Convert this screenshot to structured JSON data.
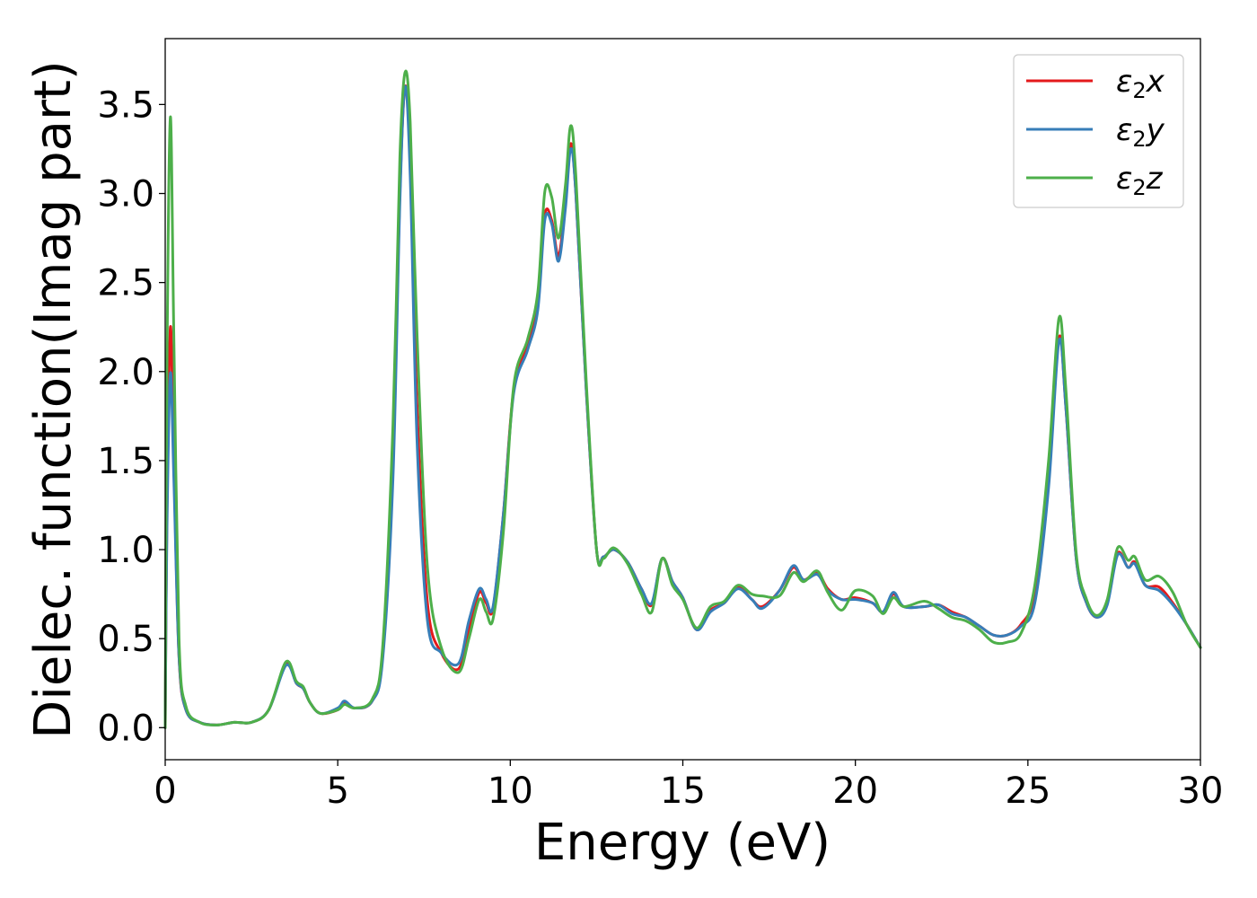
{
  "chart_data": {
    "type": "line",
    "title": "",
    "xlabel": "Energy (eV)",
    "ylabel": "Dielec. function(Imag part)",
    "xlim": [
      0,
      30
    ],
    "ylim": [
      -0.18,
      3.87
    ],
    "xticks": [
      0,
      5,
      10,
      15,
      20,
      25,
      30
    ],
    "yticks": [
      0.0,
      0.5,
      1.0,
      1.5,
      2.0,
      2.5,
      3.0,
      3.5
    ],
    "xtick_labels": [
      "0",
      "5",
      "10",
      "15",
      "20",
      "25",
      "30"
    ],
    "ytick_labels": [
      "0.0",
      "0.5",
      "1.0",
      "1.5",
      "2.0",
      "2.5",
      "3.0",
      "3.5"
    ],
    "grid": false,
    "legend_position": "top-right",
    "series": [
      {
        "name": "ε₂x",
        "legend_sym": "ε",
        "legend_sub": "2",
        "legend_var": "x",
        "color": "#e41a1c",
        "points": [
          [
            0,
            0.0
          ],
          [
            0.05,
            1.2
          ],
          [
            0.15,
            2.25
          ],
          [
            0.25,
            1.5
          ],
          [
            0.4,
            0.4
          ],
          [
            0.6,
            0.1
          ],
          [
            1,
            0.03
          ],
          [
            1.5,
            0.015
          ],
          [
            2,
            0.03
          ],
          [
            2.5,
            0.03
          ],
          [
            3,
            0.1
          ],
          [
            3.5,
            0.36
          ],
          [
            3.8,
            0.25
          ],
          [
            4.0,
            0.22
          ],
          [
            4.2,
            0.14
          ],
          [
            4.5,
            0.08
          ],
          [
            5,
            0.1
          ],
          [
            5.2,
            0.14
          ],
          [
            5.5,
            0.11
          ],
          [
            6,
            0.15
          ],
          [
            6.3,
            0.4
          ],
          [
            6.6,
            1.5
          ],
          [
            6.8,
            3.0
          ],
          [
            6.95,
            3.6
          ],
          [
            7.1,
            3.2
          ],
          [
            7.3,
            1.8
          ],
          [
            7.6,
            0.7
          ],
          [
            8,
            0.42
          ],
          [
            8.5,
            0.33
          ],
          [
            8.8,
            0.55
          ],
          [
            9.1,
            0.76
          ],
          [
            9.3,
            0.7
          ],
          [
            9.5,
            0.67
          ],
          [
            9.8,
            1.2
          ],
          [
            10.1,
            1.9
          ],
          [
            10.5,
            2.15
          ],
          [
            10.8,
            2.4
          ],
          [
            11.0,
            2.88
          ],
          [
            11.2,
            2.85
          ],
          [
            11.4,
            2.65
          ],
          [
            11.6,
            2.95
          ],
          [
            11.75,
            3.28
          ],
          [
            11.9,
            3.0
          ],
          [
            12.2,
            1.9
          ],
          [
            12.5,
            1.0
          ],
          [
            12.7,
            0.96
          ],
          [
            13,
            1.0
          ],
          [
            13.4,
            0.93
          ],
          [
            13.8,
            0.78
          ],
          [
            14.1,
            0.69
          ],
          [
            14.4,
            0.95
          ],
          [
            14.7,
            0.82
          ],
          [
            15,
            0.73
          ],
          [
            15.4,
            0.55
          ],
          [
            15.8,
            0.66
          ],
          [
            16.2,
            0.7
          ],
          [
            16.6,
            0.79
          ],
          [
            17,
            0.72
          ],
          [
            17.3,
            0.68
          ],
          [
            17.8,
            0.77
          ],
          [
            18.2,
            0.9
          ],
          [
            18.5,
            0.83
          ],
          [
            18.9,
            0.87
          ],
          [
            19.2,
            0.78
          ],
          [
            19.6,
            0.72
          ],
          [
            20,
            0.73
          ],
          [
            20.5,
            0.7
          ],
          [
            20.8,
            0.65
          ],
          [
            21.1,
            0.75
          ],
          [
            21.4,
            0.68
          ],
          [
            22,
            0.68
          ],
          [
            22.4,
            0.69
          ],
          [
            22.8,
            0.65
          ],
          [
            23.2,
            0.62
          ],
          [
            23.6,
            0.57
          ],
          [
            24,
            0.52
          ],
          [
            24.4,
            0.52
          ],
          [
            24.8,
            0.58
          ],
          [
            25.2,
            0.75
          ],
          [
            25.6,
            1.4
          ],
          [
            25.9,
            2.19
          ],
          [
            26.1,
            1.8
          ],
          [
            26.4,
            0.95
          ],
          [
            26.7,
            0.7
          ],
          [
            27.0,
            0.62
          ],
          [
            27.3,
            0.7
          ],
          [
            27.6,
            0.98
          ],
          [
            27.9,
            0.9
          ],
          [
            28.1,
            0.93
          ],
          [
            28.4,
            0.8
          ],
          [
            28.8,
            0.79
          ],
          [
            29.2,
            0.7
          ],
          [
            29.6,
            0.58
          ],
          [
            30,
            0.45
          ]
        ]
      },
      {
        "name": "ε₂y",
        "legend_sym": "ε",
        "legend_sub": "2",
        "legend_var": "y",
        "color": "#377eb8",
        "points": [
          [
            0,
            0.0
          ],
          [
            0.05,
            1.1
          ],
          [
            0.15,
            1.99
          ],
          [
            0.25,
            1.4
          ],
          [
            0.4,
            0.4
          ],
          [
            0.6,
            0.1
          ],
          [
            1,
            0.03
          ],
          [
            1.5,
            0.015
          ],
          [
            2,
            0.03
          ],
          [
            2.5,
            0.03
          ],
          [
            3,
            0.1
          ],
          [
            3.5,
            0.35
          ],
          [
            3.8,
            0.25
          ],
          [
            4.0,
            0.22
          ],
          [
            4.2,
            0.14
          ],
          [
            4.5,
            0.08
          ],
          [
            5,
            0.11
          ],
          [
            5.2,
            0.15
          ],
          [
            5.5,
            0.11
          ],
          [
            6,
            0.15
          ],
          [
            6.3,
            0.38
          ],
          [
            6.6,
            1.4
          ],
          [
            6.8,
            2.95
          ],
          [
            6.95,
            3.6
          ],
          [
            7.1,
            3.1
          ],
          [
            7.3,
            1.6
          ],
          [
            7.6,
            0.6
          ],
          [
            8,
            0.42
          ],
          [
            8.5,
            0.36
          ],
          [
            8.8,
            0.6
          ],
          [
            9.1,
            0.78
          ],
          [
            9.3,
            0.72
          ],
          [
            9.5,
            0.68
          ],
          [
            9.8,
            1.2
          ],
          [
            10.1,
            1.88
          ],
          [
            10.5,
            2.12
          ],
          [
            10.8,
            2.35
          ],
          [
            11.0,
            2.85
          ],
          [
            11.2,
            2.83
          ],
          [
            11.4,
            2.62
          ],
          [
            11.6,
            2.92
          ],
          [
            11.75,
            3.25
          ],
          [
            11.9,
            3.0
          ],
          [
            12.2,
            1.9
          ],
          [
            12.5,
            1.0
          ],
          [
            12.7,
            0.96
          ],
          [
            13,
            1.0
          ],
          [
            13.4,
            0.93
          ],
          [
            13.8,
            0.78
          ],
          [
            14.1,
            0.7
          ],
          [
            14.4,
            0.95
          ],
          [
            14.7,
            0.82
          ],
          [
            15,
            0.73
          ],
          [
            15.4,
            0.55
          ],
          [
            15.8,
            0.65
          ],
          [
            16.2,
            0.7
          ],
          [
            16.6,
            0.78
          ],
          [
            17,
            0.72
          ],
          [
            17.3,
            0.67
          ],
          [
            17.8,
            0.77
          ],
          [
            18.2,
            0.91
          ],
          [
            18.5,
            0.83
          ],
          [
            18.9,
            0.86
          ],
          [
            19.2,
            0.77
          ],
          [
            19.6,
            0.72
          ],
          [
            20,
            0.72
          ],
          [
            20.5,
            0.7
          ],
          [
            20.8,
            0.65
          ],
          [
            21.1,
            0.76
          ],
          [
            21.4,
            0.68
          ],
          [
            22,
            0.68
          ],
          [
            22.4,
            0.69
          ],
          [
            22.8,
            0.64
          ],
          [
            23.2,
            0.62
          ],
          [
            23.6,
            0.57
          ],
          [
            24,
            0.52
          ],
          [
            24.4,
            0.52
          ],
          [
            24.8,
            0.57
          ],
          [
            25.2,
            0.7
          ],
          [
            25.6,
            1.35
          ],
          [
            25.9,
            2.17
          ],
          [
            26.1,
            1.8
          ],
          [
            26.4,
            0.95
          ],
          [
            26.7,
            0.7
          ],
          [
            27.0,
            0.62
          ],
          [
            27.3,
            0.69
          ],
          [
            27.6,
            0.97
          ],
          [
            27.9,
            0.9
          ],
          [
            28.1,
            0.92
          ],
          [
            28.4,
            0.8
          ],
          [
            28.8,
            0.77
          ],
          [
            29.2,
            0.69
          ],
          [
            29.6,
            0.58
          ],
          [
            30,
            0.45
          ]
        ]
      },
      {
        "name": "ε₂z",
        "legend_sym": "ε",
        "legend_sub": "2",
        "legend_var": "z",
        "color": "#4daf4a",
        "points": [
          [
            0,
            0.0
          ],
          [
            0.05,
            2.0
          ],
          [
            0.15,
            3.43
          ],
          [
            0.25,
            2.2
          ],
          [
            0.4,
            0.5
          ],
          [
            0.6,
            0.12
          ],
          [
            1,
            0.03
          ],
          [
            1.5,
            0.015
          ],
          [
            2,
            0.03
          ],
          [
            2.5,
            0.03
          ],
          [
            3,
            0.1
          ],
          [
            3.5,
            0.37
          ],
          [
            3.8,
            0.26
          ],
          [
            4.0,
            0.23
          ],
          [
            4.2,
            0.14
          ],
          [
            4.5,
            0.08
          ],
          [
            5,
            0.1
          ],
          [
            5.2,
            0.13
          ],
          [
            5.5,
            0.11
          ],
          [
            6,
            0.16
          ],
          [
            6.3,
            0.45
          ],
          [
            6.6,
            1.7
          ],
          [
            6.8,
            3.2
          ],
          [
            6.95,
            3.68
          ],
          [
            7.1,
            3.4
          ],
          [
            7.3,
            2.2
          ],
          [
            7.6,
            0.9
          ],
          [
            8,
            0.45
          ],
          [
            8.5,
            0.31
          ],
          [
            8.8,
            0.5
          ],
          [
            9.1,
            0.72
          ],
          [
            9.3,
            0.65
          ],
          [
            9.5,
            0.61
          ],
          [
            9.8,
            1.1
          ],
          [
            10.1,
            1.92
          ],
          [
            10.5,
            2.18
          ],
          [
            10.8,
            2.45
          ],
          [
            11.0,
            3.01
          ],
          [
            11.2,
            2.98
          ],
          [
            11.4,
            2.75
          ],
          [
            11.6,
            3.05
          ],
          [
            11.75,
            3.38
          ],
          [
            11.9,
            3.1
          ],
          [
            12.2,
            1.95
          ],
          [
            12.5,
            1.0
          ],
          [
            12.7,
            0.95
          ],
          [
            13,
            1.01
          ],
          [
            13.4,
            0.92
          ],
          [
            13.8,
            0.75
          ],
          [
            14.1,
            0.65
          ],
          [
            14.4,
            0.95
          ],
          [
            14.7,
            0.8
          ],
          [
            15,
            0.72
          ],
          [
            15.4,
            0.56
          ],
          [
            15.8,
            0.68
          ],
          [
            16.2,
            0.71
          ],
          [
            16.6,
            0.8
          ],
          [
            17,
            0.75
          ],
          [
            17.3,
            0.74
          ],
          [
            17.8,
            0.74
          ],
          [
            18.2,
            0.87
          ],
          [
            18.5,
            0.82
          ],
          [
            18.9,
            0.88
          ],
          [
            19.2,
            0.76
          ],
          [
            19.6,
            0.66
          ],
          [
            20,
            0.77
          ],
          [
            20.5,
            0.74
          ],
          [
            20.8,
            0.64
          ],
          [
            21.1,
            0.73
          ],
          [
            21.4,
            0.68
          ],
          [
            22,
            0.71
          ],
          [
            22.4,
            0.67
          ],
          [
            22.8,
            0.62
          ],
          [
            23.2,
            0.6
          ],
          [
            23.6,
            0.55
          ],
          [
            24,
            0.48
          ],
          [
            24.4,
            0.48
          ],
          [
            24.8,
            0.53
          ],
          [
            25.2,
            0.8
          ],
          [
            25.6,
            1.5
          ],
          [
            25.9,
            2.3
          ],
          [
            26.1,
            1.9
          ],
          [
            26.4,
            0.98
          ],
          [
            26.7,
            0.72
          ],
          [
            27.0,
            0.63
          ],
          [
            27.3,
            0.72
          ],
          [
            27.6,
            1.01
          ],
          [
            27.9,
            0.94
          ],
          [
            28.1,
            0.96
          ],
          [
            28.4,
            0.83
          ],
          [
            28.8,
            0.85
          ],
          [
            29.2,
            0.76
          ],
          [
            29.6,
            0.58
          ],
          [
            30,
            0.45
          ]
        ]
      }
    ]
  }
}
